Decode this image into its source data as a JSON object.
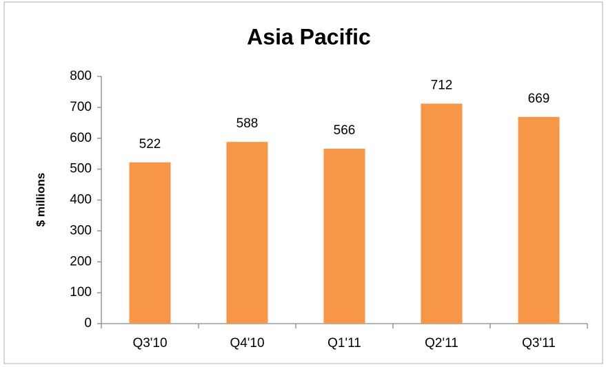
{
  "chart_data": {
    "type": "bar",
    "title": "Asia Pacific",
    "ylabel": "$ millions",
    "categories": [
      "Q3'10",
      "Q4'10",
      "Q1'11",
      "Q2'11",
      "Q3'11"
    ],
    "values": [
      522,
      588,
      566,
      712,
      669
    ],
    "color": "#f79646",
    "ylim": [
      0,
      800
    ],
    "yticks": [
      0,
      100,
      200,
      300,
      400,
      500,
      600,
      700,
      800
    ],
    "grid": false
  }
}
